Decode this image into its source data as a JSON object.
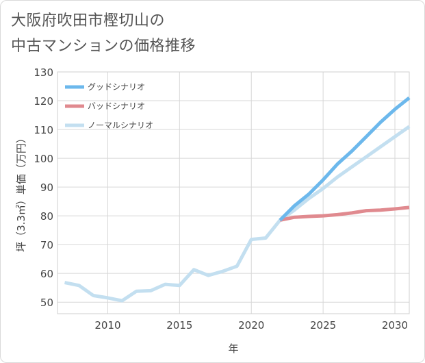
{
  "title_lines": [
    "大阪府吹田市樫切山の",
    "中古マンションの価格推移"
  ],
  "chart_data": {
    "type": "line",
    "title": "大阪府吹田市樫切山の中古マンションの価格推移",
    "xlabel": "年",
    "ylabel": "坪（3.3㎡）単価（万円）",
    "xlim": [
      2006.5,
      2031
    ],
    "ylim": [
      46,
      130
    ],
    "x_ticks": [
      2010,
      2015,
      2020,
      2025,
      2030
    ],
    "y_ticks": [
      50,
      60,
      70,
      80,
      90,
      100,
      110,
      120,
      130
    ],
    "grid": true,
    "legend_position": "top-left",
    "series": [
      {
        "name": "グッドシナリオ",
        "color": "#6cb8ec",
        "x": [
          2022,
          2023,
          2024,
          2025,
          2026,
          2027,
          2028,
          2029,
          2030,
          2031
        ],
        "values": [
          78.5,
          83.5,
          87.5,
          92.5,
          98,
          102.5,
          107.5,
          112.5,
          117,
          121
        ]
      },
      {
        "name": "バッドシナリオ",
        "color": "#e08a8f",
        "x": [
          2022,
          2023,
          2024,
          2025,
          2026,
          2027,
          2028,
          2029,
          2030,
          2031
        ],
        "values": [
          78.5,
          79.5,
          79.8,
          80,
          80.4,
          81,
          81.8,
          82,
          82.4,
          82.9
        ]
      },
      {
        "name": "ノーマルシナリオ",
        "color": "#c3dff0",
        "x": [
          2007,
          2008,
          2009,
          2010,
          2011,
          2012,
          2013,
          2014,
          2015,
          2016,
          2017,
          2018,
          2019,
          2020,
          2021,
          2022,
          2023,
          2024,
          2025,
          2026,
          2027,
          2028,
          2029,
          2030,
          2031
        ],
        "values": [
          56.8,
          55.8,
          52.3,
          51.5,
          50.5,
          53.8,
          54,
          56.2,
          55.8,
          61.3,
          59.3,
          60.7,
          62.5,
          71.8,
          72.3,
          78.5,
          82,
          86,
          89.5,
          93.5,
          97,
          100.5,
          104,
          107.5,
          111
        ]
      }
    ]
  }
}
